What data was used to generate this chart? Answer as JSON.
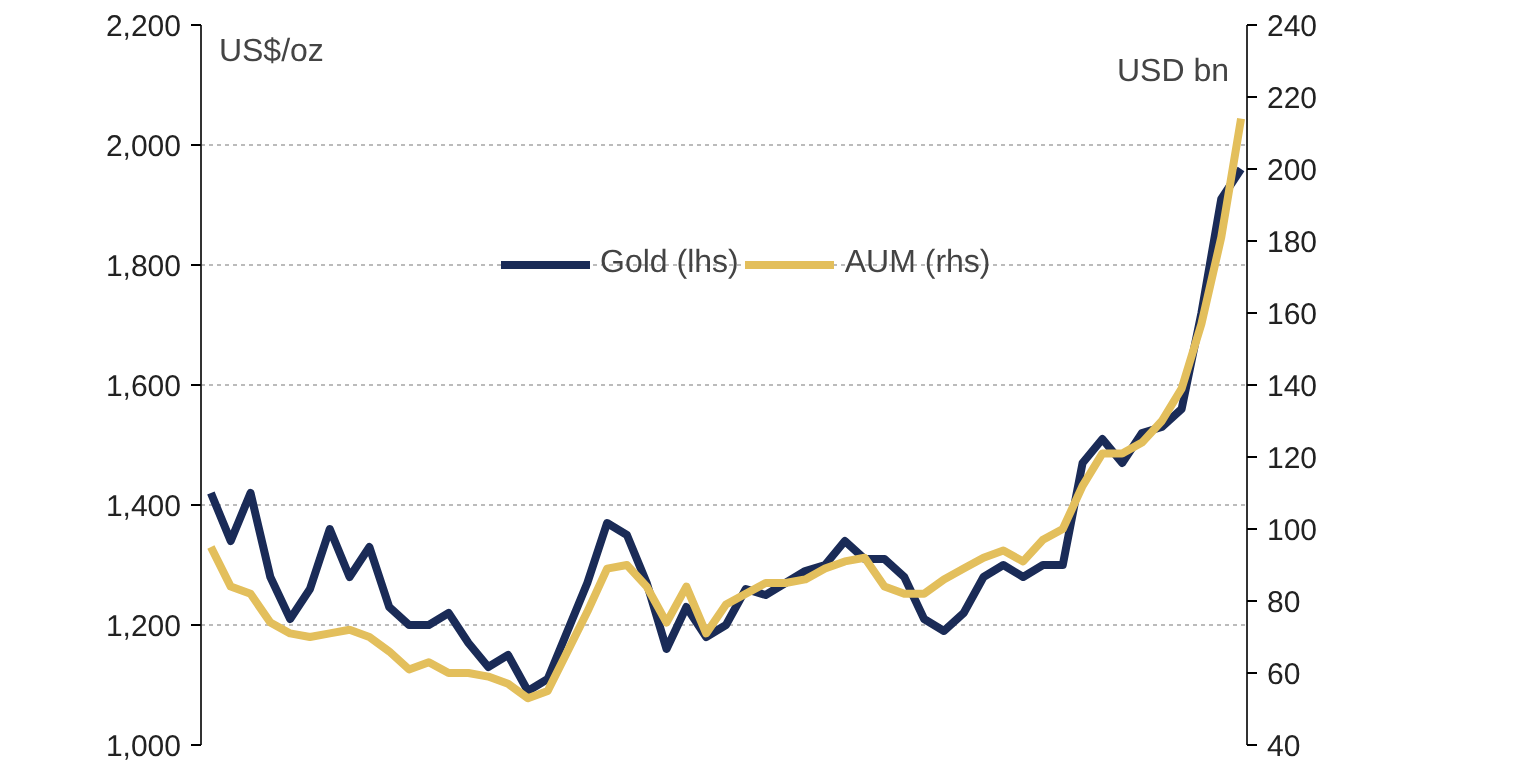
{
  "chart_data": {
    "type": "line",
    "ylabel": "US$/oz",
    "y2label": "USD bn",
    "categories": [
      null,
      null,
      null,
      null,
      null,
      null,
      null,
      null,
      null,
      null,
      null,
      null,
      null,
      null,
      null,
      null,
      null,
      null,
      null,
      null,
      null,
      null,
      null,
      null,
      null,
      null,
      null,
      null,
      null,
      null,
      null,
      null,
      null,
      null,
      null,
      null,
      null,
      null,
      null,
      null,
      null,
      null,
      null,
      null,
      null,
      null,
      null,
      null,
      null,
      null,
      null,
      null,
      null
    ],
    "series": [
      {
        "name": "Gold (lhs)",
        "color": "#1a2b57",
        "values": [
          1420,
          1340,
          1420,
          1280,
          1210,
          1260,
          1360,
          1280,
          1330,
          1230,
          1200,
          1200,
          1220,
          1170,
          1130,
          1150,
          1090,
          1110,
          1190,
          1270,
          1370,
          1350,
          1270,
          1160,
          1230,
          1180,
          1200,
          1260,
          1250,
          1270,
          1290,
          1300,
          1340,
          1310,
          1310,
          1280,
          1210,
          1190,
          1220,
          1280,
          1300,
          1280,
          1300,
          1300,
          1470,
          1510,
          1470,
          1520,
          1530,
          1560,
          1720,
          1910,
          1960
        ]
      },
      {
        "name": "AUM (rhs)",
        "color": "#e3bf5c",
        "axis": "y2",
        "values": [
          95,
          84,
          82,
          74,
          71,
          70,
          71,
          72,
          70,
          66,
          61,
          63,
          60,
          60,
          59,
          57,
          53,
          55,
          66,
          77,
          89,
          90,
          84,
          74,
          84,
          71,
          79,
          82,
          85,
          85,
          86,
          89,
          91,
          92,
          84,
          82,
          82,
          86,
          89,
          92,
          94,
          91,
          97,
          100,
          112,
          121,
          121,
          124,
          130,
          139,
          157,
          181,
          214
        ]
      }
    ],
    "ylim": [
      1000,
      2200
    ],
    "yticks": [
      {
        "value": 1000,
        "label": "1,000"
      },
      {
        "value": 1200,
        "label": "1,200"
      },
      {
        "value": 1400,
        "label": "1,400"
      },
      {
        "value": 1600,
        "label": "1,600"
      },
      {
        "value": 1800,
        "label": "1,800"
      },
      {
        "value": 2000,
        "label": "2,000"
      },
      {
        "value": 2200,
        "label": "2,200"
      }
    ],
    "y2lim": [
      40,
      240
    ],
    "y2ticks": [
      40,
      60,
      80,
      100,
      120,
      140,
      160,
      180,
      200,
      220,
      240
    ],
    "grid": "y",
    "legend": "top",
    "line_style": "solid",
    "marker": "none"
  }
}
